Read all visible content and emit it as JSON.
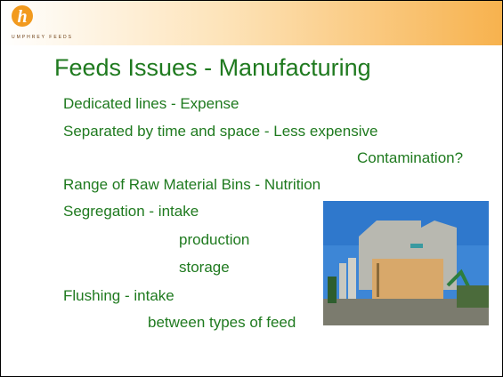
{
  "header": {
    "logo_text": "UMPHREY FEEDS"
  },
  "slide": {
    "title": "Feeds Issues - Manufacturing",
    "lines": [
      "Dedicated lines - Expense",
      "Separated by time and space - Less expensive",
      "Contamination?",
      "Range of Raw Material Bins - Nutrition",
      "Segregation - intake",
      "production",
      "storage",
      "Flushing - intake",
      "between types of feed"
    ]
  }
}
